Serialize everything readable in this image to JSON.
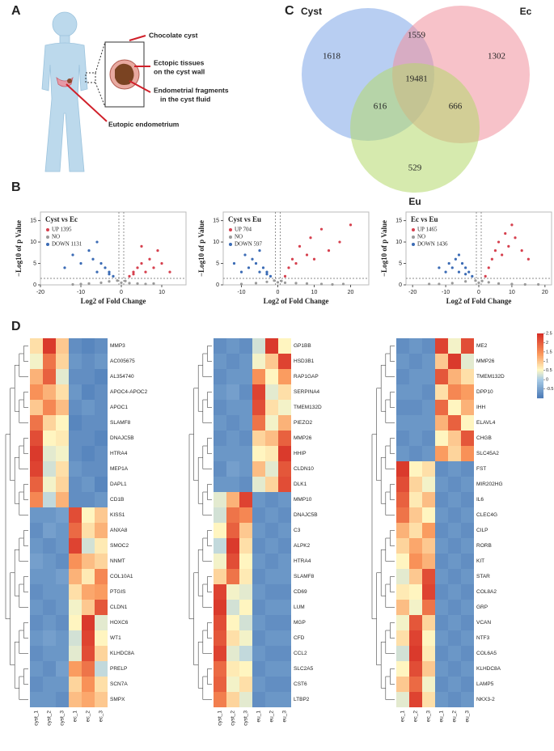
{
  "panel_labels": [
    "A",
    "B",
    "C",
    "D"
  ],
  "illustration": {
    "cyst": "Chocolate cyst",
    "wall": [
      "Ectopic tissues",
      "on the cyst wall"
    ],
    "fluid": [
      "Endometrial fragments",
      "in the cyst fluid"
    ],
    "eutopic": "Eutopic endometrium"
  },
  "chart_data": [
    {
      "type": "venn",
      "sets": [
        {
          "name": "Cyst",
          "color": "#7ea6e8"
        },
        {
          "name": "Ec",
          "color": "#f08f9c"
        },
        {
          "name": "Eu",
          "color": "#b5d96b"
        }
      ],
      "regions": [
        {
          "sets": [
            "Cyst"
          ],
          "value": 1618
        },
        {
          "sets": [
            "Ec"
          ],
          "value": 1302
        },
        {
          "sets": [
            "Eu"
          ],
          "value": 529
        },
        {
          "sets": [
            "Cyst",
            "Ec"
          ],
          "value": 1559
        },
        {
          "sets": [
            "Cyst",
            "Eu"
          ],
          "value": 616
        },
        {
          "sets": [
            "Ec",
            "Eu"
          ],
          "value": 666
        },
        {
          "sets": [
            "Cyst",
            "Ec",
            "Eu"
          ],
          "value": 19481
        }
      ]
    },
    {
      "type": "scatter",
      "title": "Cyst vs Ec",
      "xlabel": "Log2 of Fold Change",
      "ylabel": "−Log10 of p Value",
      "xlim": [
        -20,
        16
      ],
      "ylim": [
        0,
        17
      ],
      "xticks": [
        -20,
        -10,
        0,
        10
      ],
      "yticks": [
        0,
        5,
        10,
        15
      ],
      "series": [
        {
          "name": "UP 1395",
          "color": "#d6404e",
          "x": [
            2,
            3,
            4,
            5,
            6,
            7,
            8,
            9,
            10,
            3,
            5,
            12
          ],
          "values": [
            2,
            3,
            4,
            5,
            3,
            6,
            4,
            8,
            5,
            2.5,
            9,
            3
          ]
        },
        {
          "name": "NO",
          "color": "#9a9a9a",
          "x": [
            -8,
            -5,
            -3,
            -1,
            0,
            1,
            2,
            4,
            6,
            -10,
            -12,
            8
          ],
          "values": [
            0.3,
            0.5,
            0.8,
            1,
            0.5,
            0.9,
            0.4,
            0.3,
            0.2,
            0.2,
            0.1,
            0.3
          ]
        },
        {
          "name": "DOWN 1131",
          "color": "#3b6bb5",
          "x": [
            -2,
            -3,
            -4,
            -5,
            -6,
            -7,
            -8,
            -10,
            -12,
            -3,
            -6,
            -14
          ],
          "values": [
            2,
            3,
            4,
            5,
            3,
            6,
            8,
            5,
            7,
            2.5,
            10,
            4
          ]
        }
      ]
    },
    {
      "type": "scatter",
      "title": "Cyst vs Eu",
      "xlabel": "Log2 of Fold Change",
      "ylabel": "−Log10 of p Value",
      "xlim": [
        -15,
        25
      ],
      "ylim": [
        0,
        17
      ],
      "xticks": [
        -10,
        0,
        10,
        20
      ],
      "yticks": [
        0,
        5,
        10,
        15
      ],
      "series": [
        {
          "name": "UP 704",
          "color": "#d6404e",
          "x": [
            2,
            3,
            4,
            5,
            6,
            8,
            9,
            10,
            12,
            14,
            17,
            20
          ],
          "values": [
            2,
            4,
            6,
            5,
            9,
            7,
            11,
            6,
            13,
            8,
            10,
            14
          ]
        },
        {
          "name": "NO",
          "color": "#9a9a9a",
          "x": [
            -10,
            -6,
            -3,
            -1,
            0,
            1,
            2,
            5,
            8,
            12,
            15,
            18
          ],
          "values": [
            0.2,
            0.4,
            0.7,
            1,
            0.6,
            0.9,
            0.5,
            0.4,
            0.3,
            0.2,
            0.1,
            0.2
          ]
        },
        {
          "name": "DOWN 597",
          "color": "#3b6bb5",
          "x": [
            -2,
            -3,
            -4,
            -5,
            -6,
            -7,
            -8,
            -9,
            -3,
            -5,
            -10,
            -12
          ],
          "values": [
            2,
            3,
            4,
            3,
            5,
            6,
            4,
            7,
            2.5,
            8,
            3,
            5
          ]
        }
      ]
    },
    {
      "type": "scatter",
      "title": "Ec vs Eu",
      "xlabel": "Log2 of Fold Change",
      "ylabel": "−Log10 of p Value",
      "xlim": [
        -22,
        22
      ],
      "ylim": [
        0,
        17
      ],
      "xticks": [
        -20,
        -10,
        0,
        10,
        20
      ],
      "yticks": [
        0,
        5,
        10,
        15
      ],
      "series": [
        {
          "name": "UP 1465",
          "color": "#d6404e",
          "x": [
            2,
            3,
            4,
            5,
            6,
            7,
            8,
            9,
            10,
            11,
            13,
            15
          ],
          "values": [
            2,
            4,
            6,
            8,
            10,
            7,
            12,
            9,
            14,
            11,
            8,
            6
          ]
        },
        {
          "name": "NO",
          "color": "#9a9a9a",
          "x": [
            -15,
            -8,
            -4,
            -1,
            0,
            1,
            3,
            6,
            10,
            14,
            -12,
            18
          ],
          "values": [
            0.2,
            0.4,
            0.8,
            1,
            0.5,
            0.9,
            0.6,
            0.3,
            0.2,
            0.1,
            0.2,
            0.1
          ]
        },
        {
          "name": "DOWN 1436",
          "color": "#3b6bb5",
          "x": [
            -2,
            -3,
            -4,
            -5,
            -6,
            -7,
            -8,
            -9,
            -10,
            -4,
            -6,
            -12
          ],
          "values": [
            2,
            3,
            4,
            5,
            3,
            6,
            4,
            5,
            3,
            2.5,
            7,
            4
          ]
        }
      ]
    },
    {
      "type": "heatmap",
      "columns": [
        "cyst_1",
        "cyst_2",
        "cyst_3",
        "ec_1",
        "ec_2",
        "ec_3"
      ],
      "rows": [
        "MMP3",
        "AC005675",
        "AL354740",
        "APOC4-APOC2",
        "APOC1",
        "SLAMF8",
        "DNAJC5B",
        "HTRA4",
        "MEP1A",
        "DAPL1",
        "CD1B",
        "KISS1",
        "ANXA8",
        "SMOC2",
        "NNMT",
        "COL10A1",
        "PTGIS",
        "CLDN1",
        "HOXC6",
        "WT1",
        "KLHDC8A",
        "PRELP",
        "SCN7A",
        "SMPX"
      ],
      "zlim": [
        -1,
        2.5
      ],
      "zticks": [
        2.5,
        2,
        1.5,
        1,
        0.5,
        0,
        -0.5
      ],
      "colorbar": false,
      "values": [
        [
          0.8,
          2.4,
          1.0,
          -0.7,
          -0.8,
          -0.7
        ],
        [
          0.5,
          1.8,
          0.9,
          -0.6,
          -0.7,
          -0.6
        ],
        [
          1.2,
          2.0,
          0.4,
          -0.7,
          -0.7,
          -0.8
        ],
        [
          1.5,
          1.2,
          0.8,
          -0.6,
          -0.8,
          -0.7
        ],
        [
          1.0,
          1.6,
          1.1,
          -0.7,
          -0.6,
          -0.7
        ],
        [
          1.8,
          0.9,
          0.6,
          -0.8,
          -0.7,
          -0.7
        ],
        [
          2.2,
          0.6,
          0.7,
          -0.7,
          -0.7,
          -0.8
        ],
        [
          2.4,
          0.4,
          0.5,
          -0.7,
          -0.8,
          -0.7
        ],
        [
          2.3,
          0.3,
          0.8,
          -0.6,
          -0.7,
          -0.7
        ],
        [
          2.0,
          0.5,
          0.9,
          -0.7,
          -0.6,
          -0.8
        ],
        [
          1.6,
          0.2,
          1.2,
          -0.7,
          -0.7,
          -0.6
        ],
        [
          -0.6,
          -0.6,
          -0.5,
          2.2,
          0.6,
          1.0
        ],
        [
          -0.7,
          -0.5,
          -0.6,
          1.9,
          0.8,
          1.2
        ],
        [
          -0.6,
          -0.7,
          -0.6,
          2.3,
          0.3,
          0.7
        ],
        [
          -0.5,
          -0.6,
          -0.7,
          1.5,
          1.1,
          0.9
        ],
        [
          -0.6,
          -0.6,
          -0.5,
          1.2,
          0.7,
          1.6
        ],
        [
          -0.7,
          -0.6,
          -0.6,
          0.8,
          1.3,
          1.4
        ],
        [
          -0.6,
          -0.7,
          -0.6,
          0.5,
          1.0,
          2.1
        ],
        [
          -0.7,
          -0.6,
          -0.7,
          0.6,
          2.4,
          0.4
        ],
        [
          -0.6,
          -0.5,
          -0.6,
          0.3,
          2.3,
          0.6
        ],
        [
          -0.7,
          -0.6,
          -0.6,
          0.4,
          2.2,
          0.9
        ],
        [
          -0.6,
          -0.7,
          -0.5,
          1.4,
          1.8,
          0.2
        ],
        [
          -0.7,
          -0.6,
          -0.6,
          0.9,
          1.5,
          0.8
        ],
        [
          -0.6,
          -0.6,
          -0.7,
          1.1,
          1.3,
          1.0
        ]
      ]
    },
    {
      "type": "heatmap",
      "columns": [
        "cyst_1",
        "cyst_2",
        "cyst_3",
        "eu_1",
        "eu_2",
        "eu_3"
      ],
      "rows": [
        "GP1BB",
        "HSD3B1",
        "RAP1GAP",
        "SERPINA4",
        "TMEM132D",
        "PIEZO2",
        "MMP26",
        "HHIP",
        "CLDN10",
        "DLK1",
        "MMP10",
        "DNAJC5B",
        "C3",
        "ALPK2",
        "HTRA4",
        "SLAMF8",
        "CD69",
        "LUM",
        "MGP",
        "CFD",
        "CCL2",
        "SLC2A5",
        "CST6",
        "LTBP2"
      ],
      "zlim": [
        -1,
        2.5
      ],
      "zticks": [
        2.5,
        2,
        1.5,
        1,
        0.5,
        0,
        -0.5
      ],
      "colorbar": false,
      "values": [
        [
          -0.7,
          -0.6,
          -0.7,
          0.3,
          2.4,
          0.6
        ],
        [
          -0.6,
          -0.7,
          -0.6,
          0.5,
          1.0,
          2.3
        ],
        [
          -0.7,
          -0.6,
          -0.6,
          1.5,
          0.6,
          1.4
        ],
        [
          -0.6,
          -0.5,
          -0.7,
          2.3,
          0.4,
          0.8
        ],
        [
          -0.7,
          -0.6,
          -0.6,
          2.2,
          0.8,
          0.5
        ],
        [
          -0.6,
          -0.7,
          -0.6,
          1.8,
          0.5,
          1.2
        ],
        [
          -0.7,
          -0.6,
          -0.7,
          0.9,
          1.1,
          2.0
        ],
        [
          -0.6,
          -0.6,
          -0.6,
          0.6,
          0.7,
          2.4
        ],
        [
          -0.7,
          -0.5,
          -0.6,
          1.1,
          0.4,
          2.1
        ],
        [
          -0.6,
          -0.6,
          -0.7,
          0.4,
          0.9,
          2.2
        ],
        [
          0.4,
          1.2,
          2.3,
          -0.6,
          -0.7,
          -0.6
        ],
        [
          0.3,
          1.8,
          1.6,
          -0.7,
          -0.6,
          -0.7
        ],
        [
          0.6,
          2.0,
          1.0,
          -0.6,
          -0.7,
          -0.6
        ],
        [
          0.2,
          2.4,
          0.8,
          -0.7,
          -0.6,
          -0.7
        ],
        [
          0.5,
          2.2,
          0.6,
          -0.6,
          -0.7,
          -0.6
        ],
        [
          0.9,
          1.8,
          0.7,
          -0.7,
          -0.6,
          -0.6
        ],
        [
          2.3,
          0.5,
          0.4,
          -0.6,
          -0.7,
          -0.7
        ],
        [
          2.4,
          0.3,
          0.6,
          -0.7,
          -0.6,
          -0.6
        ],
        [
          2.2,
          0.6,
          0.3,
          -0.6,
          -0.7,
          -0.7
        ],
        [
          2.1,
          0.8,
          0.5,
          -0.7,
          -0.6,
          -0.6
        ],
        [
          2.3,
          0.4,
          0.2,
          -0.6,
          -0.7,
          -0.7
        ],
        [
          1.9,
          0.7,
          0.6,
          -0.7,
          -0.6,
          -0.6
        ],
        [
          2.0,
          0.5,
          0.8,
          -0.6,
          -0.7,
          -0.7
        ],
        [
          1.7,
          0.9,
          0.4,
          -0.7,
          -0.6,
          -0.6
        ]
      ]
    },
    {
      "type": "heatmap",
      "columns": [
        "ec_1",
        "ec_2",
        "ec_3",
        "eu_1",
        "eu_2",
        "eu_3"
      ],
      "rows": [
        "ME2",
        "MMP26",
        "TMEM132D",
        "DPP10",
        "IHH",
        "ELAVL4",
        "CHGB",
        "SLC45A2",
        "FST",
        "MIR202HG",
        "IL6",
        "CLEC4G",
        "CILP",
        "RORB",
        "KIT",
        "STAR",
        "COL8A2",
        "GRP",
        "VCAN",
        "NTF3",
        "COL6A5",
        "KLHDC8A",
        "LAMP5",
        "NKX3-2"
      ],
      "zlim": [
        -1,
        2.5
      ],
      "zticks": [
        2.5,
        2,
        1.5,
        1,
        0.5,
        0,
        -0.5
      ],
      "colorbar": true,
      "values": [
        [
          -0.7,
          -0.6,
          -0.7,
          2.3,
          0.5,
          2.2
        ],
        [
          -0.6,
          -0.7,
          -0.6,
          1.0,
          2.4,
          0.4
        ],
        [
          -0.7,
          -0.6,
          -0.6,
          2.1,
          1.2,
          0.8
        ],
        [
          -0.6,
          -0.6,
          -0.7,
          0.8,
          1.6,
          1.4
        ],
        [
          -0.7,
          -0.7,
          -0.6,
          1.9,
          0.6,
          1.2
        ],
        [
          -0.6,
          -0.6,
          -0.6,
          1.2,
          2.0,
          0.6
        ],
        [
          -0.7,
          -0.6,
          -0.7,
          0.6,
          1.0,
          2.1
        ],
        [
          -0.6,
          -0.7,
          -0.6,
          1.4,
          0.9,
          1.5
        ],
        [
          2.4,
          0.6,
          0.8,
          -0.7,
          -0.6,
          -0.7
        ],
        [
          2.2,
          0.9,
          0.5,
          -0.6,
          -0.7,
          -0.6
        ],
        [
          2.0,
          0.7,
          1.1,
          -0.7,
          -0.6,
          -0.7
        ],
        [
          1.8,
          1.0,
          0.6,
          -0.6,
          -0.7,
          -0.6
        ],
        [
          1.2,
          0.8,
          1.4,
          -0.7,
          -0.6,
          -0.7
        ],
        [
          0.9,
          1.3,
          1.0,
          -0.6,
          -0.7,
          -0.6
        ],
        [
          0.6,
          1.5,
          1.2,
          -0.7,
          -0.6,
          -0.7
        ],
        [
          0.4,
          1.0,
          2.2,
          -0.6,
          -0.7,
          -0.6
        ],
        [
          0.7,
          0.6,
          2.3,
          -0.7,
          -0.6,
          -0.7
        ],
        [
          1.1,
          0.5,
          1.8,
          -0.6,
          -0.7,
          -0.6
        ],
        [
          0.5,
          2.1,
          0.9,
          -0.7,
          -0.6,
          -0.7
        ],
        [
          0.8,
          2.3,
          0.6,
          -0.6,
          -0.7,
          -0.6
        ],
        [
          0.3,
          2.4,
          0.7,
          -0.7,
          -0.6,
          -0.7
        ],
        [
          0.6,
          2.2,
          1.0,
          -0.6,
          -0.7,
          -0.6
        ],
        [
          1.0,
          1.9,
          0.5,
          -0.7,
          -0.6,
          -0.7
        ],
        [
          0.4,
          2.3,
          0.8,
          -0.6,
          -0.7,
          -0.6
        ]
      ]
    }
  ]
}
